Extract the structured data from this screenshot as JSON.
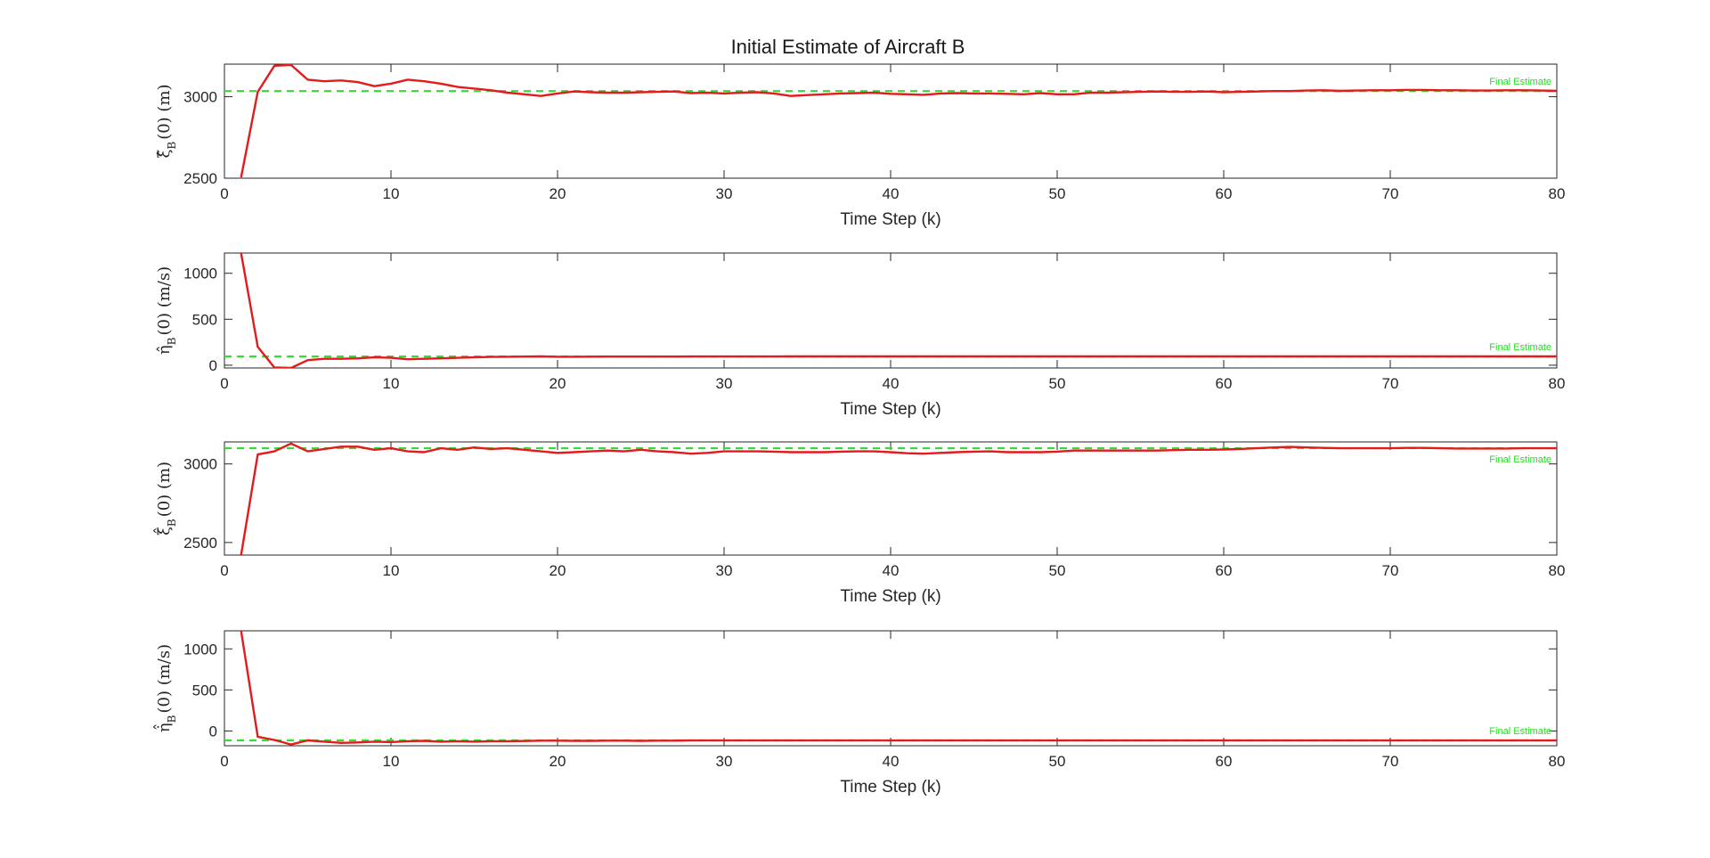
{
  "figure_title": "Initial Estimate of Aircraft B",
  "colors": {
    "estimate": "#e41a1c",
    "final": "#33dd33",
    "axis": "#262626"
  },
  "chart_data": [
    {
      "type": "line",
      "title": "Initial Estimate of Aircraft B",
      "xlabel": "Time Step (k)",
      "ylabel": "ξ̂_B(0) (m)",
      "ylabel_main": "ξ̂",
      "ylabel_sub": "B",
      "ylabel_rest": "(0)  (m)",
      "xlim": [
        0,
        80
      ],
      "ylim": [
        2500,
        3200
      ],
      "xticks": [
        0,
        10,
        20,
        30,
        40,
        50,
        60,
        70,
        80
      ],
      "yticks": [
        2500,
        3000
      ],
      "grid": false,
      "annotation": "Final Estimate",
      "reference": {
        "name": "Final Estimate",
        "value": 3035,
        "style": "dashed"
      },
      "series": [
        {
          "x": [
            1,
            2,
            3,
            4,
            5,
            6,
            7,
            8,
            9,
            10,
            11,
            12,
            13,
            14,
            15,
            16,
            17,
            18,
            19,
            20,
            21,
            22,
            23,
            24,
            25,
            26,
            27,
            28,
            29,
            30,
            31,
            32,
            33,
            34,
            35,
            36,
            37,
            38,
            39,
            40,
            41,
            42,
            43,
            44,
            45,
            46,
            47,
            48,
            49,
            50,
            51,
            52,
            53,
            54,
            55,
            56,
            57,
            58,
            59,
            60,
            61,
            62,
            63,
            64,
            65,
            66,
            67,
            68,
            69,
            70,
            71,
            72,
            73,
            74,
            75,
            76,
            77,
            78,
            79,
            80
          ],
          "values": [
            2505,
            3030,
            3190,
            3195,
            3105,
            3095,
            3100,
            3090,
            3065,
            3080,
            3105,
            3095,
            3080,
            3060,
            3050,
            3040,
            3025,
            3015,
            3005,
            3020,
            3032,
            3028,
            3025,
            3025,
            3028,
            3030,
            3032,
            3022,
            3025,
            3020,
            3025,
            3028,
            3020,
            3005,
            3010,
            3015,
            3020,
            3022,
            3025,
            3018,
            3015,
            3012,
            3020,
            3022,
            3020,
            3020,
            3018,
            3015,
            3022,
            3015,
            3015,
            3025,
            3025,
            3028,
            3030,
            3032,
            3030,
            3030,
            3032,
            3028,
            3030,
            3032,
            3035,
            3035,
            3038,
            3040,
            3036,
            3038,
            3040,
            3040,
            3042,
            3042,
            3040,
            3040,
            3038,
            3038,
            3040,
            3040,
            3038,
            3036
          ]
        }
      ]
    },
    {
      "type": "line",
      "xlabel": "Time Step (k)",
      "ylabel": "η̂_B(0) (m/s)",
      "ylabel_main": "η̂",
      "ylabel_sub": "B",
      "ylabel_rest": "(0)  (m/s)",
      "xlim": [
        0,
        80
      ],
      "ylim": [
        -30,
        1220
      ],
      "xticks": [
        0,
        10,
        20,
        30,
        40,
        50,
        60,
        70,
        80
      ],
      "yticks": [
        0,
        500,
        1000
      ],
      "grid": false,
      "annotation": "Final Estimate",
      "reference": {
        "name": "Final Estimate",
        "value": 95,
        "style": "dashed"
      },
      "series": [
        {
          "x": [
            1,
            2,
            3,
            4,
            5,
            6,
            7,
            8,
            9,
            10,
            11,
            12,
            13,
            14,
            15,
            16,
            17,
            18,
            19,
            20,
            21,
            22,
            23,
            24,
            25,
            26,
            27,
            28,
            29,
            30,
            31,
            32,
            33,
            34,
            35,
            36,
            37,
            38,
            39,
            40,
            41,
            42,
            43,
            44,
            45,
            46,
            47,
            48,
            49,
            50,
            51,
            52,
            53,
            54,
            55,
            56,
            57,
            58,
            59,
            60,
            61,
            62,
            63,
            64,
            65,
            66,
            67,
            68,
            69,
            70,
            71,
            72,
            73,
            74,
            75,
            76,
            77,
            78,
            79,
            80
          ],
          "values": [
            1220,
            200,
            -25,
            -30,
            55,
            70,
            70,
            75,
            85,
            80,
            65,
            70,
            75,
            80,
            85,
            90,
            92,
            94,
            96,
            92,
            92,
            93,
            94,
            94,
            94,
            94,
            94,
            95,
            95,
            95,
            95,
            95,
            95,
            96,
            96,
            96,
            96,
            96,
            96,
            96,
            96,
            96,
            96,
            96,
            96,
            96,
            96,
            96,
            96,
            96,
            96,
            96,
            96,
            96,
            96,
            96,
            96,
            96,
            96,
            96,
            96,
            96,
            96,
            96,
            96,
            96,
            96,
            96,
            96,
            96,
            96,
            96,
            96,
            96,
            96,
            96,
            96,
            96,
            96,
            96
          ]
        }
      ]
    },
    {
      "type": "line",
      "xlabel": "Time Step (k)",
      "ylabel": "ξ̇̂_B(0) (m)",
      "ylabel_main": "ξ̇̂",
      "ylabel_sub": "B",
      "ylabel_rest": "(0)  (m)",
      "xlim": [
        0,
        80
      ],
      "ylim": [
        2420,
        3140
      ],
      "xticks": [
        0,
        10,
        20,
        30,
        40,
        50,
        60,
        70,
        80
      ],
      "yticks": [
        2500,
        3000
      ],
      "grid": false,
      "annotation": "Final Estimate",
      "reference": {
        "name": "Final Estimate",
        "value": 3100,
        "style": "dashed"
      },
      "series": [
        {
          "x": [
            1,
            2,
            3,
            4,
            5,
            6,
            7,
            8,
            9,
            10,
            11,
            12,
            13,
            14,
            15,
            16,
            17,
            18,
            19,
            20,
            21,
            22,
            23,
            24,
            25,
            26,
            27,
            28,
            29,
            30,
            31,
            32,
            33,
            34,
            35,
            36,
            37,
            38,
            39,
            40,
            41,
            42,
            43,
            44,
            45,
            46,
            47,
            48,
            49,
            50,
            51,
            52,
            53,
            54,
            55,
            56,
            57,
            58,
            59,
            60,
            61,
            62,
            63,
            64,
            65,
            66,
            67,
            68,
            69,
            70,
            71,
            72,
            73,
            74,
            75,
            76,
            77,
            78,
            79,
            80
          ],
          "values": [
            2420,
            3060,
            3080,
            3130,
            3080,
            3095,
            3110,
            3110,
            3090,
            3100,
            3080,
            3075,
            3100,
            3090,
            3105,
            3095,
            3100,
            3090,
            3080,
            3070,
            3075,
            3080,
            3085,
            3080,
            3090,
            3080,
            3075,
            3065,
            3070,
            3080,
            3080,
            3080,
            3078,
            3075,
            3075,
            3075,
            3078,
            3080,
            3080,
            3075,
            3068,
            3065,
            3070,
            3075,
            3078,
            3080,
            3075,
            3075,
            3075,
            3078,
            3085,
            3085,
            3085,
            3085,
            3085,
            3085,
            3088,
            3090,
            3090,
            3092,
            3095,
            3100,
            3105,
            3108,
            3105,
            3102,
            3100,
            3100,
            3100,
            3100,
            3102,
            3102,
            3100,
            3098,
            3098,
            3098,
            3098,
            3100,
            3100,
            3100
          ]
        }
      ]
    },
    {
      "type": "line",
      "xlabel": "Time Step (k)",
      "ylabel": "η̇̂_B(0) (m/s)",
      "ylabel_main": "η̇̂",
      "ylabel_sub": "B",
      "ylabel_rest": "(0)  (m/s)",
      "xlim": [
        0,
        80
      ],
      "ylim": [
        -180,
        1220
      ],
      "xticks": [
        0,
        10,
        20,
        30,
        40,
        50,
        60,
        70,
        80
      ],
      "yticks": [
        0,
        500,
        1000
      ],
      "grid": false,
      "annotation": "Final Estimate",
      "reference": {
        "name": "Final Estimate",
        "value": -115,
        "style": "dashed"
      },
      "series": [
        {
          "x": [
            1,
            2,
            3,
            4,
            5,
            6,
            7,
            8,
            9,
            10,
            11,
            12,
            13,
            14,
            15,
            16,
            17,
            18,
            19,
            20,
            21,
            22,
            23,
            24,
            25,
            26,
            27,
            28,
            29,
            30,
            31,
            32,
            33,
            34,
            35,
            36,
            37,
            38,
            39,
            40,
            41,
            42,
            43,
            44,
            45,
            46,
            47,
            48,
            49,
            50,
            51,
            52,
            53,
            54,
            55,
            56,
            57,
            58,
            59,
            60,
            61,
            62,
            63,
            64,
            65,
            66,
            67,
            68,
            69,
            70,
            71,
            72,
            73,
            74,
            75,
            76,
            77,
            78,
            79,
            80
          ],
          "values": [
            1220,
            -70,
            -110,
            -165,
            -115,
            -130,
            -145,
            -140,
            -130,
            -135,
            -125,
            -120,
            -130,
            -125,
            -130,
            -125,
            -125,
            -122,
            -118,
            -118,
            -120,
            -120,
            -118,
            -118,
            -120,
            -118,
            -118,
            -116,
            -116,
            -116,
            -116,
            -116,
            -116,
            -116,
            -116,
            -116,
            -116,
            -116,
            -116,
            -116,
            -116,
            -116,
            -116,
            -116,
            -116,
            -116,
            -116,
            -116,
            -116,
            -116,
            -116,
            -116,
            -116,
            -116,
            -116,
            -116,
            -116,
            -116,
            -116,
            -116,
            -116,
            -116,
            -116,
            -116,
            -116,
            -116,
            -116,
            -116,
            -116,
            -116,
            -116,
            -116,
            -116,
            -116,
            -116,
            -116,
            -116,
            -116,
            -116,
            -116
          ]
        }
      ]
    }
  ]
}
